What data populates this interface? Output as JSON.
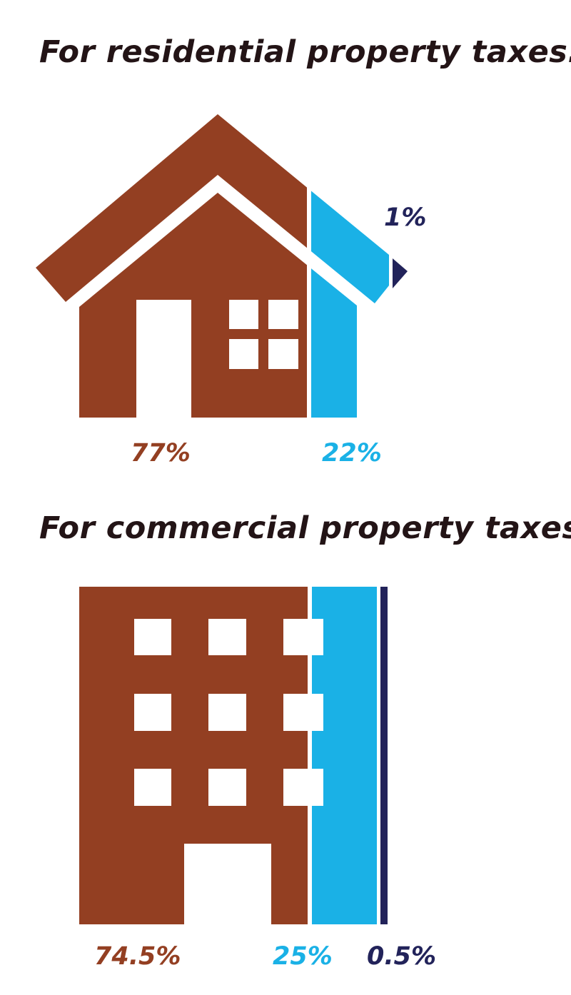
{
  "colors": {
    "brown": "#933f22",
    "blue": "#1ab1e6",
    "navy": "#22235a",
    "title": "#231416"
  },
  "chart_data": [
    {
      "type": "pictorial-bar",
      "icon": "house-icon",
      "title": "For residential property taxes:",
      "values": [
        77,
        22,
        1
      ],
      "labels": [
        "77%",
        "22%",
        "1%"
      ],
      "colors": [
        "#933f22",
        "#1ab1e6",
        "#22235a"
      ]
    },
    {
      "type": "pictorial-bar",
      "icon": "building-icon",
      "title": "For commercial property taxes:",
      "values": [
        74.5,
        25,
        0.5
      ],
      "labels": [
        "74.5%",
        "25%",
        "0.5%"
      ],
      "colors": [
        "#933f22",
        "#1ab1e6",
        "#22235a"
      ]
    }
  ]
}
